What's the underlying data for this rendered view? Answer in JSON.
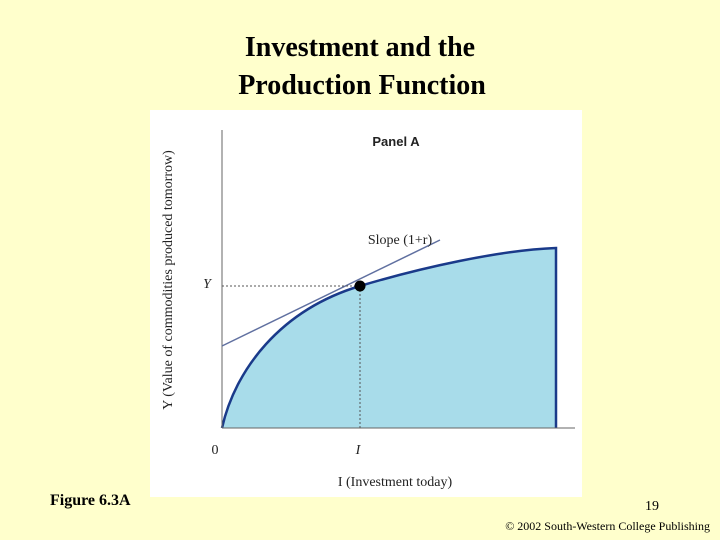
{
  "title": {
    "lines": [
      "Investment and the",
      "Production Function"
    ]
  },
  "figure": {
    "panel": "Panel A",
    "slope_label": "Slope (1+r)",
    "y_axis_label": "Y (Value of commodities produced tomorrow)",
    "y_point_label": "Y",
    "origin_label": "0",
    "x_point_label": "I",
    "x_axis_label": "I (Investment today)"
  },
  "footer": {
    "figure_number": "Figure 6.3A",
    "page_number": "19",
    "copyright": "© 2002 South-Western College Publishing"
  }
}
